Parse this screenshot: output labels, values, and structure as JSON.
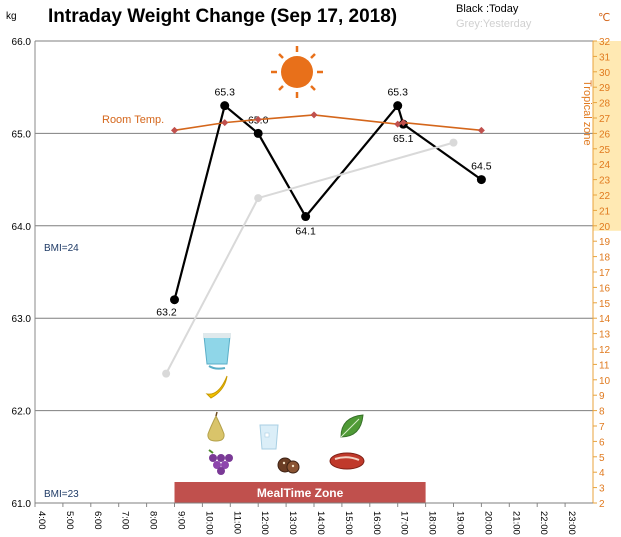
{
  "chart_data": {
    "type": "line",
    "title": "Intraday Weight Change (Sep 17, 2018)",
    "legend": {
      "today": "Black :Today",
      "yesterday": "Grey:Yesterday"
    },
    "y_unit": "kg",
    "y2_unit": "℃",
    "ylim": [
      61.0,
      66.0
    ],
    "y_ticks": [
      "66.0",
      "65.0",
      "64.0",
      "63.0",
      "62.0",
      "61.0"
    ],
    "y2lim": [
      2,
      32
    ],
    "y2_ticks": [
      "32",
      "31",
      "30",
      "29",
      "28",
      "27",
      "26",
      "25",
      "24",
      "23",
      "22",
      "21",
      "20",
      "19",
      "18",
      "17",
      "16",
      "15",
      "14",
      "13",
      "12",
      "11",
      "10",
      "9",
      "8",
      "7",
      "6",
      "5",
      "4",
      "3",
      "2"
    ],
    "x_ticks": [
      "4:00",
      "5:00",
      "6:00",
      "7:00",
      "8:00",
      "9:00",
      "10:00",
      "11:00",
      "12:00",
      "13:00",
      "14:00",
      "15:00",
      "16:00",
      "17:00",
      "18:00",
      "19:00",
      "20:00",
      "21:00",
      "22:00",
      "23:00"
    ],
    "series": [
      {
        "name": "Today",
        "color": "#000000",
        "x": [
          9.0,
          10.8,
          12.0,
          13.7,
          17.0,
          17.2,
          20.0
        ],
        "values": [
          63.2,
          65.3,
          65.0,
          64.1,
          65.3,
          65.1,
          64.5
        ],
        "labels": [
          "63.2",
          "65.3",
          "65.0",
          "64.1",
          "65.3",
          "65.1",
          "64.5"
        ]
      },
      {
        "name": "Yesterday",
        "color": "#d9d9d9",
        "x": [
          8.7,
          12.0,
          19.0
        ],
        "values": [
          62.4,
          64.3,
          64.9
        ]
      },
      {
        "name": "Room Temp.",
        "color": "#d4661b",
        "axis": "right",
        "x": [
          9.0,
          10.8,
          12.0,
          14.0,
          17.0,
          17.2,
          20.0
        ],
        "values": [
          26.2,
          26.7,
          26.9,
          27.2,
          26.6,
          26.7,
          26.2
        ]
      }
    ],
    "annotations": {
      "room_temp": "Room Temp.",
      "tropical_zone": "Tropical zone",
      "tropical_range": [
        20,
        32
      ],
      "bmi_upper": "BMI=24",
      "bmi_lower": "BMI=23",
      "mealtime": "MealTime Zone",
      "mealtime_range": [
        9.0,
        18.0
      ]
    },
    "icons": [
      "sun-icon",
      "yogurt-cup-icon",
      "banana-icon",
      "pear-icon",
      "grapes-icon",
      "water-glass-icon",
      "cookies-icon",
      "leaf-icon",
      "steak-icon"
    ],
    "grid": true,
    "legend_position": "top-right"
  }
}
